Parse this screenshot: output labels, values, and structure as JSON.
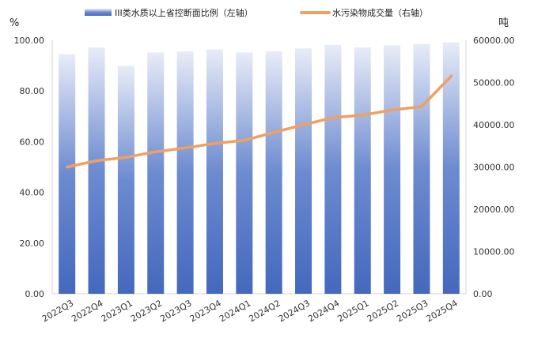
{
  "chart_data": {
    "type": "bar",
    "categories": [
      "2022Q3",
      "2022Q4",
      "2023Q1",
      "2023Q2",
      "2023Q3",
      "2023Q4",
      "2024Q1",
      "2024Q2",
      "2024Q3",
      "2024Q4",
      "2025Q1",
      "2025Q2",
      "2025Q3",
      "2025Q4"
    ],
    "series": [
      {
        "name": "III类水质以上省控断面比例（左轴）",
        "type": "bar",
        "axis": "left",
        "values": [
          94.5,
          97.2,
          89.9,
          95.2,
          95.6,
          96.4,
          95.2,
          95.6,
          96.8,
          98.2,
          97.2,
          98.0,
          98.6,
          99.2
        ]
      },
      {
        "name": "水污染物成交量（右轴）",
        "type": "line",
        "axis": "right",
        "values": [
          30000,
          31500,
          32300,
          33600,
          34500,
          35600,
          36300,
          38200,
          40000,
          41700,
          42300,
          43500,
          44300,
          51500
        ]
      }
    ],
    "y_left": {
      "unit": "%",
      "range": [
        0,
        100
      ],
      "ticks": [
        "0.00",
        "20.00",
        "40.00",
        "60.00",
        "80.00",
        "100.00"
      ]
    },
    "y_right": {
      "unit": "吨",
      "range": [
        0,
        60000
      ],
      "ticks": [
        "0.00",
        "10000.00",
        "20000.00",
        "30000.00",
        "40000.00",
        "50000.00",
        "60000.00"
      ]
    },
    "legend_position": "top",
    "grid": false,
    "colors": {
      "bar_top": "#e6eaf6",
      "bar_bottom": "#4a6fc0",
      "line": "#f0a060"
    }
  }
}
